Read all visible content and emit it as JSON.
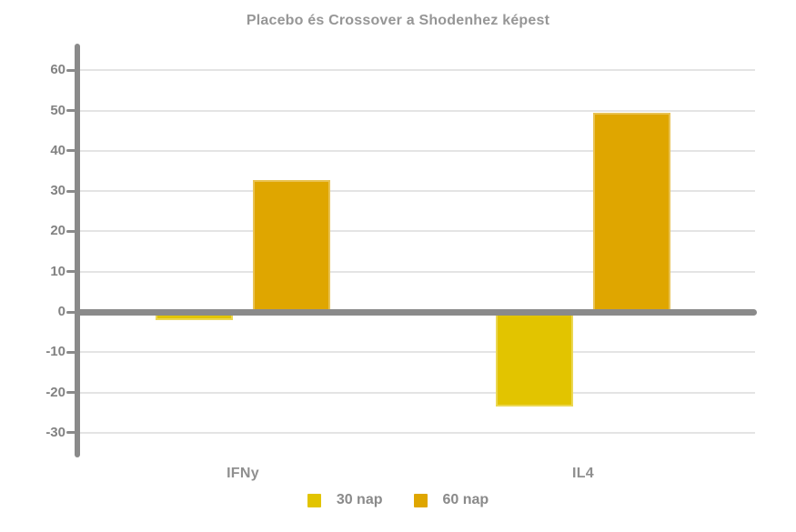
{
  "title": "Placebo és Crossover a Shodenhez képest",
  "colors": {
    "background": "#ffffff",
    "title_text": "#969696",
    "axis": "#8a8a8a",
    "grid": "#e4e4e4",
    "tick_text": "#828282",
    "category_text": "#8f8f8f",
    "legend_text": "#8a8a8a",
    "series_30_nap": "#e2c400",
    "series_60_nap": "#dfa600"
  },
  "chart_data": {
    "type": "bar",
    "title": "Placebo és Crossover a Shodenhez képest",
    "categories": [
      "IFNy",
      "IL4"
    ],
    "series": [
      {
        "name": "30 nap",
        "color": "#e2c400",
        "values": [
          -2,
          -23.5
        ]
      },
      {
        "name": "60 nap",
        "color": "#dfa600",
        "values": [
          32.8,
          49.5
        ]
      }
    ],
    "xlabel": "",
    "ylabel": "",
    "ylim": [
      -36,
      66
    ],
    "yticks": [
      60,
      50,
      40,
      30,
      20,
      10,
      0,
      -10,
      -20,
      -30
    ],
    "grid": true,
    "legend_position": "bottom"
  }
}
